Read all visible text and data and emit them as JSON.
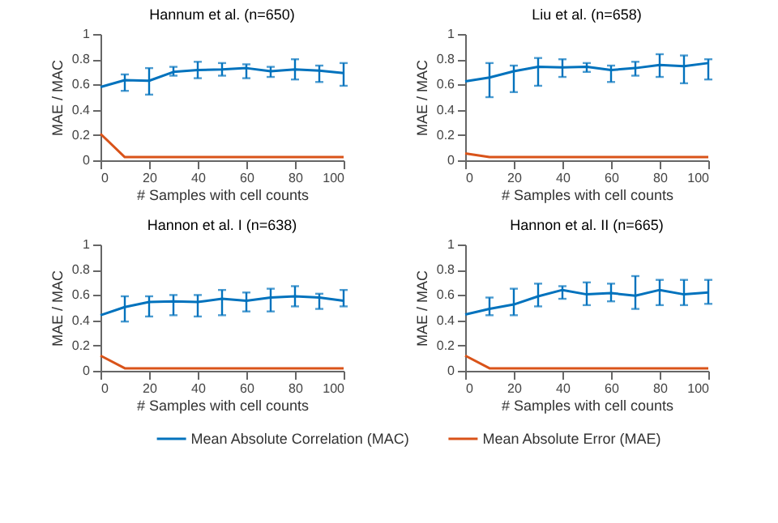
{
  "chart_data": [
    {
      "type": "line",
      "title": "Hannum et al. (n=650)",
      "xlabel": "# Samples with cell counts",
      "ylabel": "MAE / MAC",
      "x": [
        0,
        10,
        20,
        30,
        40,
        50,
        60,
        70,
        80,
        90,
        100
      ],
      "xlim": [
        0,
        100
      ],
      "xticks": [
        0,
        20,
        40,
        60,
        80,
        100
      ],
      "ylim": [
        0,
        1
      ],
      "yticks": [
        0,
        0.2,
        0.4,
        0.6,
        0.8,
        1
      ],
      "grid": false,
      "legend": false,
      "series": [
        {
          "color": "#0072bd",
          "values": [
            0.58,
            0.635,
            0.63,
            0.7,
            0.715,
            0.72,
            0.73,
            0.705,
            0.72,
            0.71,
            0.69
          ],
          "errors": [
            null,
            [
              0.55,
              0.68
            ],
            [
              0.52,
              0.73
            ],
            [
              0.67,
              0.74
            ],
            [
              0.65,
              0.78
            ],
            [
              0.67,
              0.77
            ],
            [
              0.65,
              0.76
            ],
            [
              0.66,
              0.74
            ],
            [
              0.64,
              0.8
            ],
            [
              0.62,
              0.75
            ],
            [
              0.59,
              0.77
            ]
          ]
        },
        {
          "color": "#d95319",
          "values": [
            0.21,
            0.025,
            0.025,
            0.025,
            0.025,
            0.025,
            0.025,
            0.025,
            0.025,
            0.025,
            0.025
          ]
        }
      ]
    },
    {
      "type": "line",
      "title": "Liu et al. (n=658)",
      "xlabel": "# Samples with cell counts",
      "ylabel": "MAE / MAC",
      "x": [
        0,
        10,
        20,
        30,
        40,
        50,
        60,
        70,
        80,
        90,
        100
      ],
      "xlim": [
        0,
        100
      ],
      "xticks": [
        0,
        20,
        40,
        60,
        80,
        100
      ],
      "ylim": [
        0,
        1
      ],
      "yticks": [
        0,
        0.2,
        0.4,
        0.6,
        0.8,
        1
      ],
      "grid": false,
      "legend": false,
      "series": [
        {
          "color": "#0072bd",
          "values": [
            0.625,
            0.655,
            0.705,
            0.74,
            0.735,
            0.74,
            0.715,
            0.73,
            0.755,
            0.745,
            0.77
          ],
          "errors": [
            null,
            [
              0.5,
              0.77
            ],
            [
              0.54,
              0.75
            ],
            [
              0.59,
              0.81
            ],
            [
              0.66,
              0.8
            ],
            [
              0.7,
              0.77
            ],
            [
              0.62,
              0.75
            ],
            [
              0.67,
              0.78
            ],
            [
              0.66,
              0.84
            ],
            [
              0.61,
              0.83
            ],
            [
              0.64,
              0.8
            ]
          ]
        },
        {
          "color": "#d95319",
          "values": [
            0.055,
            0.025,
            0.025,
            0.025,
            0.025,
            0.025,
            0.025,
            0.025,
            0.025,
            0.025,
            0.025
          ]
        }
      ]
    },
    {
      "type": "line",
      "title": "Hannon et al. I (n=638)",
      "xlabel": "# Samples with cell counts",
      "ylabel": "MAE / MAC",
      "x": [
        0,
        10,
        20,
        30,
        40,
        50,
        60,
        70,
        80,
        90,
        100
      ],
      "xlim": [
        0,
        100
      ],
      "xticks": [
        0,
        20,
        40,
        60,
        80,
        100
      ],
      "ylim": [
        0,
        1
      ],
      "yticks": [
        0,
        0.2,
        0.4,
        0.6,
        0.8,
        1
      ],
      "grid": false,
      "legend": false,
      "series": [
        {
          "color": "#0072bd",
          "values": [
            0.44,
            0.505,
            0.545,
            0.55,
            0.545,
            0.57,
            0.555,
            0.58,
            0.59,
            0.58,
            0.555
          ],
          "errors": [
            null,
            [
              0.39,
              0.59
            ],
            [
              0.43,
              0.59
            ],
            [
              0.44,
              0.6
            ],
            [
              0.43,
              0.6
            ],
            [
              0.44,
              0.64
            ],
            [
              0.47,
              0.62
            ],
            [
              0.47,
              0.65
            ],
            [
              0.51,
              0.67
            ],
            [
              0.49,
              0.61
            ],
            [
              0.51,
              0.64
            ]
          ]
        },
        {
          "color": "#d95319",
          "values": [
            0.12,
            0.02,
            0.02,
            0.02,
            0.02,
            0.02,
            0.02,
            0.02,
            0.02,
            0.02,
            0.02
          ]
        }
      ]
    },
    {
      "type": "line",
      "title": "Hannon et al. II (n=665)",
      "xlabel": "# Samples with cell counts",
      "ylabel": "MAE / MAC",
      "x": [
        0,
        10,
        20,
        30,
        40,
        50,
        60,
        70,
        80,
        90,
        100
      ],
      "xlim": [
        0,
        100
      ],
      "xticks": [
        0,
        20,
        40,
        60,
        80,
        100
      ],
      "ylim": [
        0,
        1
      ],
      "yticks": [
        0,
        0.2,
        0.4,
        0.6,
        0.8,
        1
      ],
      "grid": false,
      "legend": "bottom",
      "series": [
        {
          "name": "Mean Absolute Correlation (MAC)",
          "color": "#0072bd",
          "values": [
            0.445,
            0.49,
            0.525,
            0.59,
            0.64,
            0.605,
            0.615,
            0.595,
            0.64,
            0.605,
            0.62
          ],
          "errors": [
            null,
            [
              0.44,
              0.58
            ],
            [
              0.44,
              0.65
            ],
            [
              0.51,
              0.69
            ],
            [
              0.57,
              0.67
            ],
            [
              0.52,
              0.7
            ],
            [
              0.55,
              0.69
            ],
            [
              0.49,
              0.75
            ],
            [
              0.52,
              0.72
            ],
            [
              0.52,
              0.72
            ],
            [
              0.53,
              0.72
            ]
          ]
        },
        {
          "name": "Mean Absolute Error (MAE)",
          "color": "#d95319",
          "values": [
            0.12,
            0.02,
            0.02,
            0.02,
            0.02,
            0.02,
            0.02,
            0.02,
            0.02,
            0.02,
            0.02
          ]
        }
      ]
    }
  ]
}
